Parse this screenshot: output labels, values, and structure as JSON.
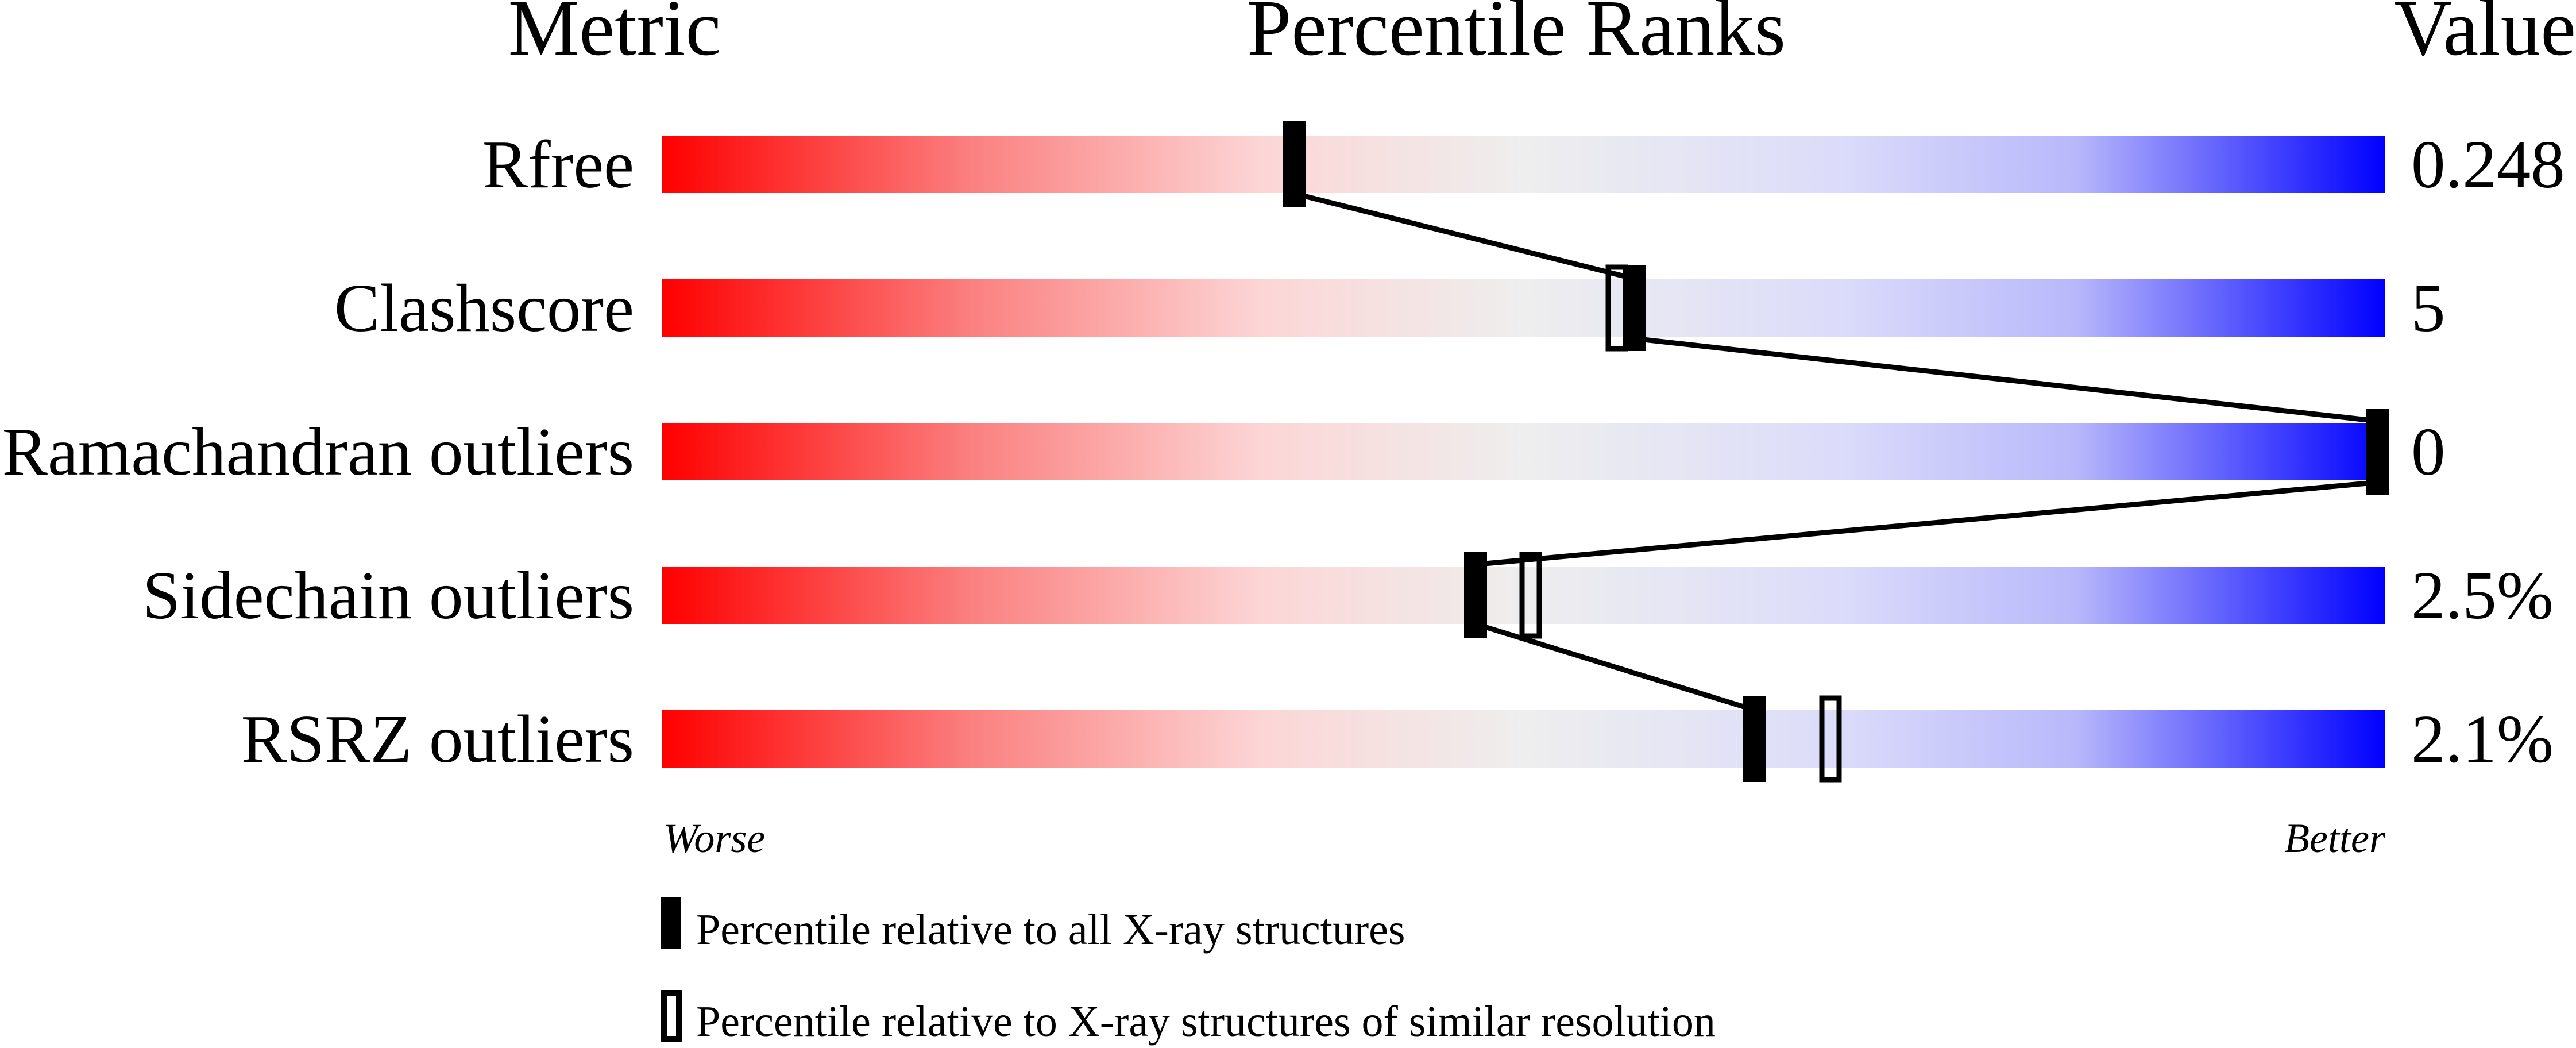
{
  "chart_data": {
    "type": "percentile-slider",
    "headers": {
      "metric": "Metric",
      "ranks": "Percentile Ranks",
      "value": "Value"
    },
    "axis": {
      "left_label": "Worse",
      "right_label": "Better",
      "xlim": [
        0,
        100
      ]
    },
    "gradient_colors": {
      "worse": "#ff0000",
      "middle": "#eeeeee",
      "better": "#0000ff"
    },
    "metrics": [
      {
        "name": "Rfree",
        "value": "0.248",
        "percentile_all": 36.7,
        "percentile_similar": null
      },
      {
        "name": "Clashscore",
        "value": "5",
        "percentile_all": 56.4,
        "percentile_similar": 55.4
      },
      {
        "name": "Ramachandran outliers",
        "value": "0",
        "percentile_all": 100,
        "percentile_similar": 100
      },
      {
        "name": "Sidechain outliers",
        "value": "2.5%",
        "percentile_all": 47.2,
        "percentile_similar": 50.4
      },
      {
        "name": "RSRZ outliers",
        "value": "2.1%",
        "percentile_all": 63.4,
        "percentile_similar": 67.8
      }
    ],
    "legend": [
      {
        "marker": "filled",
        "label": "Percentile relative to all X-ray structures"
      },
      {
        "marker": "open",
        "label": "Percentile relative to X-ray structures of similar resolution"
      }
    ]
  }
}
